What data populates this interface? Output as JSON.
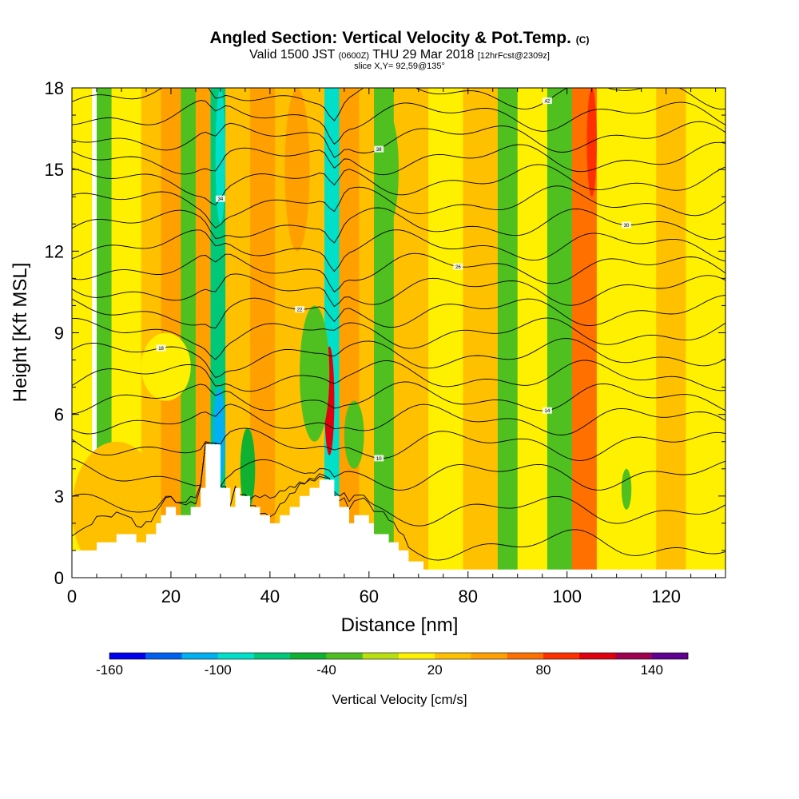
{
  "title": {
    "main": "Angled Section: Vertical Velocity & Pot.Temp.",
    "main_suffix": "(C)",
    "valid_prefix": "Valid 1500 JST",
    "valid_utc": "(0600Z)",
    "valid_date": "THU 29 Mar 2018",
    "forecast": "[12hrFcst@2309z]",
    "slice": "slice X,Y= 92,59@135°"
  },
  "chart_data": {
    "type": "heatmap",
    "xlabel": "Distance [nm]",
    "ylabel": "Height [Kft MSL]",
    "xlim": [
      0,
      132
    ],
    "ylim": [
      0,
      18
    ],
    "xticks": [
      0,
      20,
      40,
      60,
      80,
      100,
      120
    ],
    "yticks": [
      0,
      3,
      6,
      9,
      12,
      15,
      18
    ],
    "colorbar": {
      "label": "Vertical Velocity [cm/s]",
      "range": [
        -160,
        160
      ],
      "ticks": [
        -160,
        -100,
        -40,
        20,
        80,
        140
      ],
      "colors": [
        "#0000f0",
        "#0060f0",
        "#00b0f0",
        "#00e0c8",
        "#00c878",
        "#10b030",
        "#50c020",
        "#b8e010",
        "#fff000",
        "#ffc000",
        "#ffa000",
        "#ff7000",
        "#ff3000",
        "#e00010",
        "#a00050",
        "#600090"
      ]
    },
    "velocity_bands": [
      {
        "x": [
          0,
          4
        ],
        "w": 0
      },
      {
        "x": [
          5,
          8
        ],
        "w": -40
      },
      {
        "x": [
          8,
          14
        ],
        "w": 10
      },
      {
        "x": [
          14,
          18
        ],
        "w": 30
      },
      {
        "x": [
          18,
          22
        ],
        "w": 40
      },
      {
        "x": [
          22,
          25
        ],
        "w": -40
      },
      {
        "x": [
          25,
          28
        ],
        "w": 40
      },
      {
        "x": [
          28,
          31
        ],
        "w": -80
      },
      {
        "x": [
          31,
          36
        ],
        "w": 20
      },
      {
        "x": [
          36,
          41
        ],
        "w": 40
      },
      {
        "x": [
          41,
          47
        ],
        "w": 20
      },
      {
        "x": [
          47,
          51
        ],
        "w": 30
      },
      {
        "x": [
          51,
          54
        ],
        "w": -100
      },
      {
        "x": [
          54,
          58
        ],
        "w": 40
      },
      {
        "x": [
          58,
          61
        ],
        "w": 20
      },
      {
        "x": [
          61,
          65
        ],
        "w": -30
      },
      {
        "x": [
          65,
          72
        ],
        "w": 20
      },
      {
        "x": [
          72,
          79
        ],
        "w": 0
      },
      {
        "x": [
          79,
          86
        ],
        "w": 20
      },
      {
        "x": [
          86,
          90
        ],
        "w": -30
      },
      {
        "x": [
          90,
          96
        ],
        "w": 10
      },
      {
        "x": [
          96,
          101
        ],
        "w": -30
      },
      {
        "x": [
          101,
          106
        ],
        "w": 60
      },
      {
        "x": [
          106,
          111
        ],
        "w": 10
      },
      {
        "x": [
          111,
          118
        ],
        "w": 0
      },
      {
        "x": [
          118,
          124
        ],
        "w": 20
      },
      {
        "x": [
          124,
          132
        ],
        "w": 0
      }
    ],
    "velocity_cells": [
      {
        "x": [
          51,
          53
        ],
        "y": [
          4.5,
          8.5
        ],
        "w": 110
      },
      {
        "x": [
          52.5,
          54
        ],
        "y": [
          10,
          18
        ],
        "w": -100
      },
      {
        "x": [
          28.5,
          31
        ],
        "y": [
          3.5,
          7
        ],
        "w": -120
      },
      {
        "x": [
          29,
          31
        ],
        "y": [
          13,
          18
        ],
        "w": -90
      },
      {
        "x": [
          34,
          37
        ],
        "y": [
          2.5,
          5.5
        ],
        "w": -50
      },
      {
        "x": [
          46,
          52
        ],
        "y": [
          5,
          10
        ],
        "w": -40
      },
      {
        "x": [
          55,
          59
        ],
        "y": [
          4,
          6.5
        ],
        "w": -40
      },
      {
        "x": [
          104,
          106
        ],
        "y": [
          14,
          18
        ],
        "w": 90
      },
      {
        "x": [
          43,
          48
        ],
        "y": [
          12,
          18
        ],
        "w": 50
      },
      {
        "x": [
          0,
          18
        ],
        "y": [
          0,
          5
        ],
        "w": 20
      },
      {
        "x": [
          14,
          24
        ],
        "y": [
          6.5,
          9
        ],
        "w": 0
      },
      {
        "x": [
          111,
          113
        ],
        "y": [
          2.5,
          4
        ],
        "w": -30
      },
      {
        "x": [
          62,
          66
        ],
        "y": [
          13,
          17
        ],
        "w": -40
      }
    ],
    "terrain": [
      [
        0,
        1
      ],
      [
        5,
        1
      ],
      [
        5,
        1.3
      ],
      [
        9,
        1.3
      ],
      [
        9,
        1.6
      ],
      [
        13,
        1.6
      ],
      [
        13,
        1.3
      ],
      [
        15,
        1.3
      ],
      [
        15,
        1.6
      ],
      [
        17,
        1.6
      ],
      [
        17,
        2
      ],
      [
        18,
        2
      ],
      [
        18,
        2.3
      ],
      [
        19,
        2.3
      ],
      [
        19,
        2.6
      ],
      [
        21,
        2.6
      ],
      [
        21,
        2.3
      ],
      [
        24,
        2.3
      ],
      [
        24,
        2.6
      ],
      [
        26,
        2.6
      ],
      [
        26,
        3.3
      ],
      [
        27,
        3.3
      ],
      [
        27,
        4.9
      ],
      [
        30,
        4.9
      ],
      [
        30,
        3.3
      ],
      [
        32,
        3.3
      ],
      [
        32,
        2.6
      ],
      [
        33,
        2.6
      ],
      [
        33,
        3.3
      ],
      [
        34,
        3.3
      ],
      [
        34,
        3
      ],
      [
        36,
        3
      ],
      [
        36,
        2.6
      ],
      [
        38,
        2.6
      ],
      [
        38,
        2.3
      ],
      [
        40,
        2.3
      ],
      [
        40,
        2
      ],
      [
        42,
        2
      ],
      [
        42,
        2.3
      ],
      [
        44,
        2.3
      ],
      [
        44,
        2.6
      ],
      [
        46,
        2.6
      ],
      [
        46,
        3
      ],
      [
        48,
        3
      ],
      [
        48,
        3.3
      ],
      [
        50,
        3.3
      ],
      [
        50,
        3.6
      ],
      [
        53,
        3.6
      ],
      [
        53,
        3
      ],
      [
        54,
        3
      ],
      [
        54,
        2.6
      ],
      [
        56,
        2.6
      ],
      [
        56,
        2
      ],
      [
        57,
        2
      ],
      [
        57,
        2.3
      ],
      [
        60,
        2.3
      ],
      [
        60,
        2
      ],
      [
        61,
        2
      ],
      [
        61,
        1.6
      ],
      [
        64,
        1.6
      ],
      [
        64,
        1.3
      ],
      [
        66,
        1.3
      ],
      [
        66,
        1
      ],
      [
        68,
        1
      ],
      [
        68,
        0.6
      ],
      [
        71,
        0.6
      ],
      [
        71,
        0.3
      ],
      [
        132,
        0.3
      ],
      [
        132,
        0
      ]
    ],
    "theta_levels": [
      {
        "base": 1.2,
        "label": ""
      },
      {
        "base": 2.5,
        "label": ""
      },
      {
        "base": 3.8,
        "label": ""
      },
      {
        "base": 4.9,
        "label": "10"
      },
      {
        "base": 5.8,
        "label": ""
      },
      {
        "base": 6.6,
        "label": "14"
      },
      {
        "base": 7.4,
        "label": ""
      },
      {
        "base": 8.2,
        "label": "18"
      },
      {
        "base": 9.0,
        "label": ""
      },
      {
        "base": 9.8,
        "label": "22"
      },
      {
        "base": 10.6,
        "label": ""
      },
      {
        "base": 11.4,
        "label": "26"
      },
      {
        "base": 12.2,
        "label": ""
      },
      {
        "base": 13.0,
        "label": "30"
      },
      {
        "base": 13.8,
        "label": ""
      },
      {
        "base": 14.6,
        "label": "34"
      },
      {
        "base": 15.4,
        "label": ""
      },
      {
        "base": 16.2,
        "label": "38"
      },
      {
        "base": 17.0,
        "label": ""
      },
      {
        "base": 17.8,
        "label": "42"
      }
    ]
  }
}
